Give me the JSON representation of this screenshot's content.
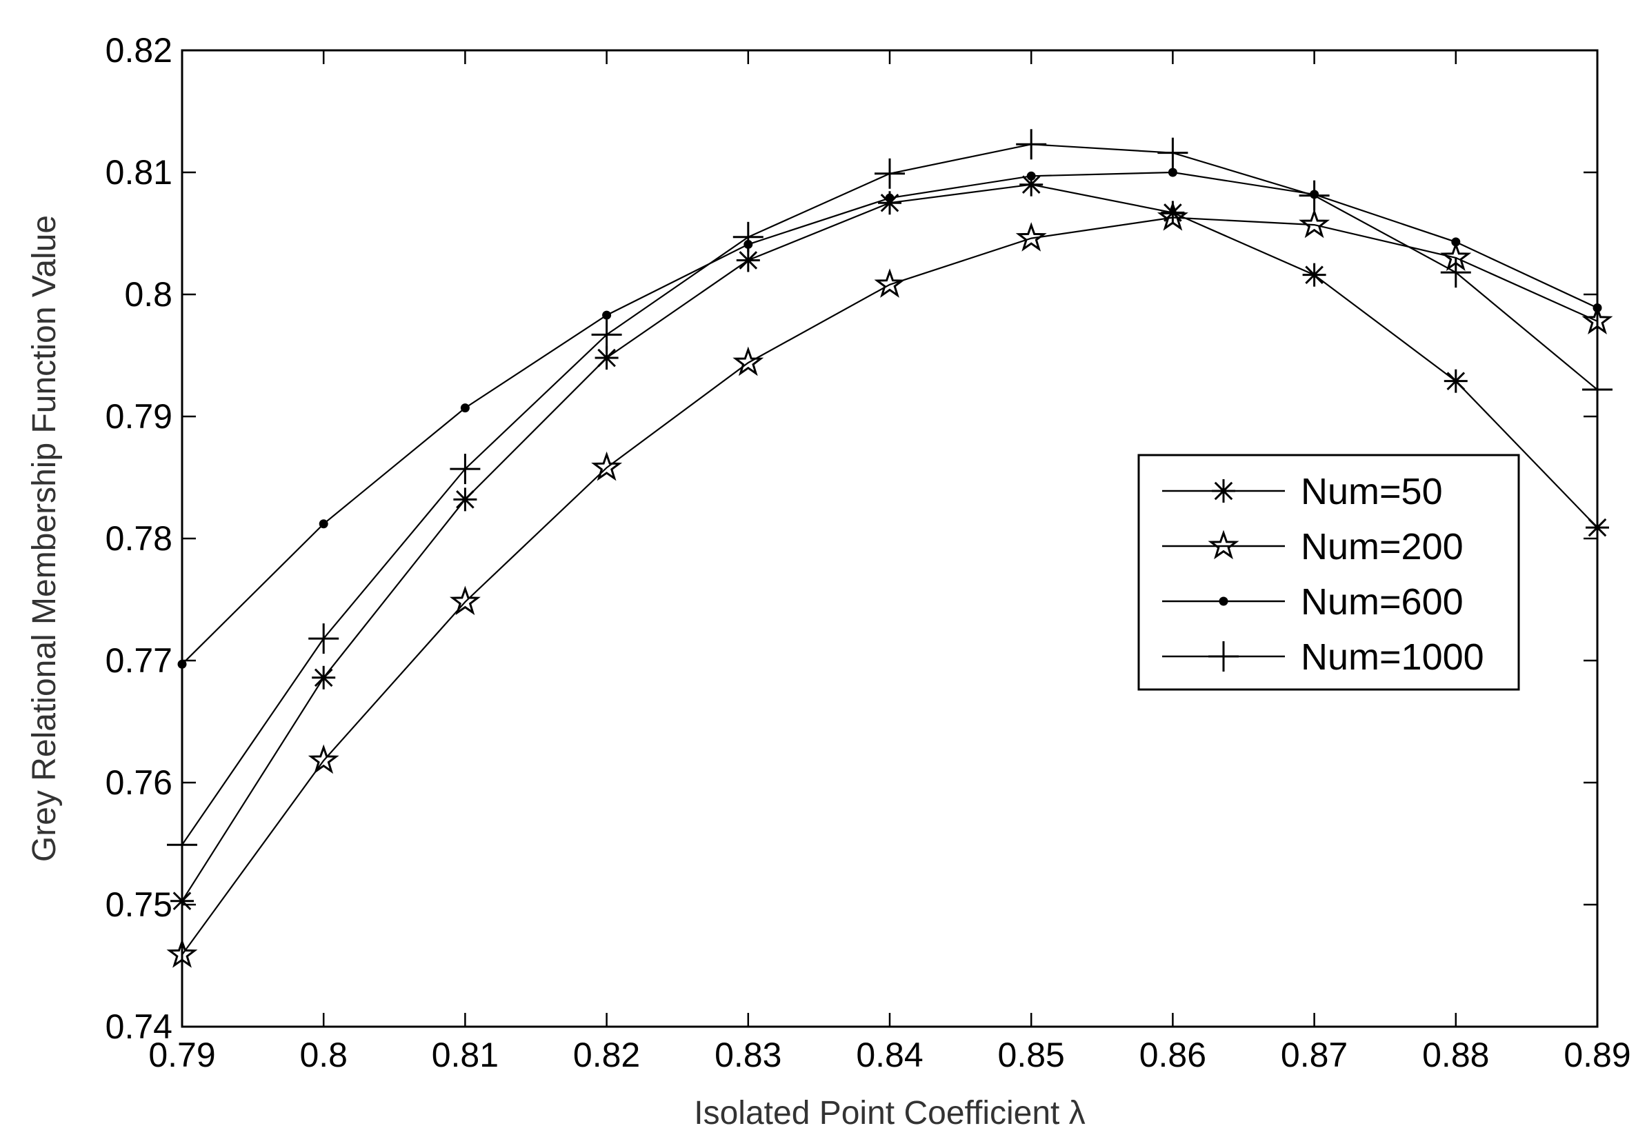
{
  "chart_data": {
    "type": "line",
    "xlabel": "Isolated Point Coefficient λ",
    "ylabel": "Grey Relational Membership Function Value",
    "xlim": [
      0.79,
      0.89
    ],
    "ylim": [
      0.74,
      0.82
    ],
    "xticks": [
      0.79,
      0.8,
      0.81,
      0.82,
      0.83,
      0.84,
      0.85,
      0.86,
      0.87,
      0.88,
      0.89
    ],
    "xtick_labels": [
      "0.79",
      "0.8",
      "0.81",
      "0.82",
      "0.83",
      "0.84",
      "0.85",
      "0.86",
      "0.87",
      "0.88",
      "0.89"
    ],
    "yticks": [
      0.74,
      0.75,
      0.76,
      0.77,
      0.78,
      0.79,
      0.8,
      0.81,
      0.82
    ],
    "ytick_labels": [
      "0.74",
      "0.75",
      "0.76",
      "0.77",
      "0.78",
      "0.79",
      "0.8",
      "0.81",
      "0.82"
    ],
    "grid": false,
    "legend_position": "right",
    "x": [
      0.79,
      0.8,
      0.81,
      0.82,
      0.83,
      0.84,
      0.85,
      0.86,
      0.87,
      0.88,
      0.89
    ],
    "series": [
      {
        "name": "Num=50",
        "marker": "asterisk",
        "color": "#000000",
        "values": [
          0.7503,
          0.7686,
          0.7832,
          0.7948,
          0.8028,
          0.8075,
          0.809,
          0.8067,
          0.8016,
          0.7929,
          0.7809
        ]
      },
      {
        "name": "Num=200",
        "marker": "pentagram",
        "color": "#000000",
        "values": [
          0.7459,
          0.7618,
          0.7748,
          0.7858,
          0.7944,
          0.8008,
          0.8046,
          0.8063,
          0.8057,
          0.803,
          0.7978
        ]
      },
      {
        "name": "Num=600",
        "marker": "dot",
        "color": "#000000",
        "values": [
          0.7697,
          0.7812,
          0.7907,
          0.7983,
          0.8041,
          0.8079,
          0.8097,
          0.81,
          0.8082,
          0.8043,
          0.7989
        ]
      },
      {
        "name": "Num=1000",
        "marker": "plus",
        "color": "#000000",
        "values": [
          0.7549,
          0.7718,
          0.7857,
          0.7967,
          0.8047,
          0.8099,
          0.8123,
          0.8116,
          0.8081,
          0.8018,
          0.7922
        ]
      }
    ]
  }
}
